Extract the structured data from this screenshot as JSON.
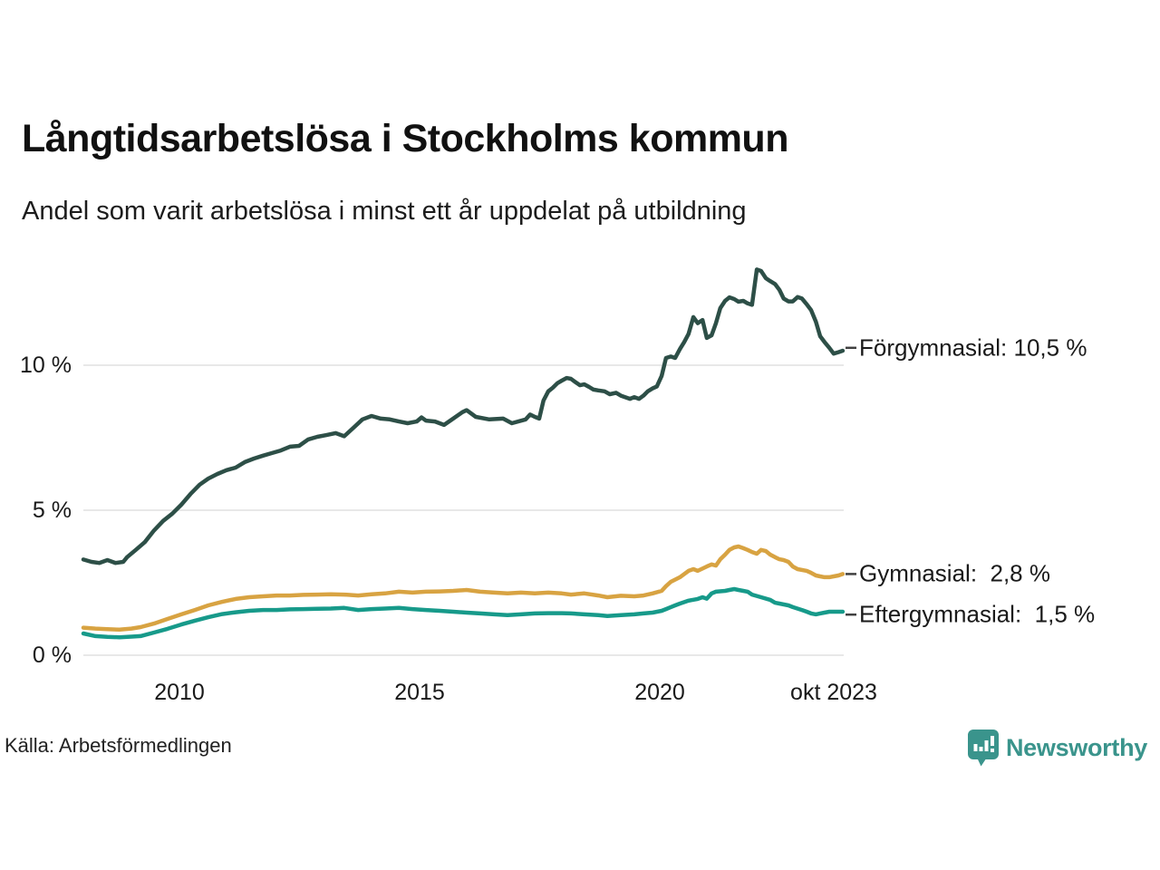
{
  "title": "Långtidsarbetslösa i Stockholms kommun",
  "subtitle": "Andel som varit arbetslösa i minst ett år uppdelat på utbildning",
  "source": "Källa: Arbetsförmedlingen",
  "branding": {
    "name": "Newsworthy",
    "color": "#3a948c",
    "icon": "newsworthy-pin-barchart-icon"
  },
  "colors": {
    "forgymnasial": "#2d4f47",
    "gymnasial": "#d8a342",
    "eftergymnasial": "#179a8a",
    "grid": "#e8e8e8",
    "text": "#1a1a1a",
    "annotation_dash": "#404040"
  },
  "chart_data": {
    "type": "line",
    "title": "Långtidsarbetslösa i Stockholms kommun",
    "subtitle": "Andel som varit arbetslösa i minst ett år uppdelat på utbildning",
    "xlabel": "",
    "ylabel": "",
    "unit": "%",
    "x_unit": "decimal year (monthly data)",
    "x_range": [
      2008.0,
      2023.83
    ],
    "ylim": [
      0,
      13.9
    ],
    "grid": "horizontal",
    "legend_position": "right-edge-annotations",
    "y_ticks": [
      {
        "label": "10 %",
        "value": 10
      },
      {
        "label": "5 %",
        "value": 5
      },
      {
        "label": "0 %",
        "value": 0
      }
    ],
    "x_ticks": [
      {
        "label": "2010",
        "value": 2010
      },
      {
        "label": "2015",
        "value": 2015
      },
      {
        "label": "2020",
        "value": 2020
      },
      {
        "label": "okt 2023",
        "value": 2023.62
      }
    ],
    "series": [
      {
        "id": "forgymnasial",
        "name": "Förgymnasial",
        "annotation": "Förgymnasial: 10,5 %",
        "last_value_label": "10,5 %",
        "color": "#2d4f47",
        "label_v": 10.6,
        "points": [
          [
            2008.0,
            3.3
          ],
          [
            2008.17,
            3.22
          ],
          [
            2008.33,
            3.18
          ],
          [
            2008.5,
            3.28
          ],
          [
            2008.67,
            3.18
          ],
          [
            2008.83,
            3.22
          ],
          [
            2008.91,
            3.38
          ],
          [
            2009.09,
            3.63
          ],
          [
            2009.28,
            3.9
          ],
          [
            2009.47,
            4.3
          ],
          [
            2009.66,
            4.63
          ],
          [
            2009.85,
            4.88
          ],
          [
            2010.04,
            5.19
          ],
          [
            2010.23,
            5.56
          ],
          [
            2010.42,
            5.88
          ],
          [
            2010.6,
            6.09
          ],
          [
            2010.79,
            6.25
          ],
          [
            2010.98,
            6.38
          ],
          [
            2011.17,
            6.47
          ],
          [
            2011.36,
            6.66
          ],
          [
            2011.55,
            6.78
          ],
          [
            2011.74,
            6.88
          ],
          [
            2011.92,
            6.97
          ],
          [
            2012.11,
            7.06
          ],
          [
            2012.3,
            7.19
          ],
          [
            2012.49,
            7.22
          ],
          [
            2012.68,
            7.44
          ],
          [
            2012.87,
            7.53
          ],
          [
            2013.06,
            7.59
          ],
          [
            2013.25,
            7.66
          ],
          [
            2013.43,
            7.55
          ],
          [
            2013.62,
            7.84
          ],
          [
            2013.81,
            8.13
          ],
          [
            2014.0,
            8.25
          ],
          [
            2014.19,
            8.16
          ],
          [
            2014.38,
            8.13
          ],
          [
            2014.57,
            8.06
          ],
          [
            2014.75,
            8.0
          ],
          [
            2014.94,
            8.06
          ],
          [
            2015.04,
            8.2
          ],
          [
            2015.13,
            8.09
          ],
          [
            2015.32,
            8.06
          ],
          [
            2015.51,
            7.94
          ],
          [
            2015.7,
            8.16
          ],
          [
            2015.89,
            8.38
          ],
          [
            2015.98,
            8.45
          ],
          [
            2016.17,
            8.22
          ],
          [
            2016.45,
            8.13
          ],
          [
            2016.74,
            8.16
          ],
          [
            2016.92,
            8.0
          ],
          [
            2017.21,
            8.13
          ],
          [
            2017.3,
            8.3
          ],
          [
            2017.4,
            8.22
          ],
          [
            2017.49,
            8.16
          ],
          [
            2017.58,
            8.78
          ],
          [
            2017.68,
            9.1
          ],
          [
            2017.77,
            9.22
          ],
          [
            2017.87,
            9.38
          ],
          [
            2017.96,
            9.47
          ],
          [
            2018.06,
            9.56
          ],
          [
            2018.15,
            9.53
          ],
          [
            2018.25,
            9.41
          ],
          [
            2018.34,
            9.31
          ],
          [
            2018.43,
            9.34
          ],
          [
            2018.53,
            9.25
          ],
          [
            2018.62,
            9.16
          ],
          [
            2018.72,
            9.13
          ],
          [
            2018.85,
            9.1
          ],
          [
            2018.96,
            9.0
          ],
          [
            2019.09,
            9.05
          ],
          [
            2019.19,
            8.95
          ],
          [
            2019.38,
            8.84
          ],
          [
            2019.47,
            8.9
          ],
          [
            2019.57,
            8.84
          ],
          [
            2019.66,
            8.95
          ],
          [
            2019.75,
            9.1
          ],
          [
            2019.85,
            9.2
          ],
          [
            2019.94,
            9.27
          ],
          [
            2020.04,
            9.63
          ],
          [
            2020.13,
            10.25
          ],
          [
            2020.23,
            10.3
          ],
          [
            2020.32,
            10.25
          ],
          [
            2020.42,
            10.56
          ],
          [
            2020.51,
            10.8
          ],
          [
            2020.6,
            11.08
          ],
          [
            2020.7,
            11.66
          ],
          [
            2020.79,
            11.45
          ],
          [
            2020.89,
            11.56
          ],
          [
            2020.98,
            10.94
          ],
          [
            2021.08,
            11.03
          ],
          [
            2021.17,
            11.45
          ],
          [
            2021.26,
            11.97
          ],
          [
            2021.36,
            12.22
          ],
          [
            2021.45,
            12.34
          ],
          [
            2021.55,
            12.28
          ],
          [
            2021.64,
            12.19
          ],
          [
            2021.74,
            12.22
          ],
          [
            2021.83,
            12.13
          ],
          [
            2021.92,
            12.08
          ],
          [
            2022.02,
            13.3
          ],
          [
            2022.11,
            13.25
          ],
          [
            2022.21,
            13.0
          ],
          [
            2022.3,
            12.9
          ],
          [
            2022.4,
            12.8
          ],
          [
            2022.49,
            12.6
          ],
          [
            2022.58,
            12.3
          ],
          [
            2022.68,
            12.2
          ],
          [
            2022.77,
            12.2
          ],
          [
            2022.87,
            12.35
          ],
          [
            2022.96,
            12.3
          ],
          [
            2023.06,
            12.1
          ],
          [
            2023.15,
            11.9
          ],
          [
            2023.25,
            11.5
          ],
          [
            2023.34,
            11.0
          ],
          [
            2023.43,
            10.8
          ],
          [
            2023.53,
            10.6
          ],
          [
            2023.62,
            10.4
          ],
          [
            2023.72,
            10.45
          ],
          [
            2023.81,
            10.5
          ]
        ]
      },
      {
        "id": "gymnasial",
        "name": "Gymnasial",
        "annotation": "Gymnasial:  2,8 %",
        "last_value_label": "2,8 %",
        "color": "#d8a342",
        "label_v": 2.8,
        "points": [
          [
            2008.0,
            0.95
          ],
          [
            2008.25,
            0.92
          ],
          [
            2008.5,
            0.9
          ],
          [
            2008.75,
            0.88
          ],
          [
            2009.0,
            0.92
          ],
          [
            2009.19,
            0.97
          ],
          [
            2009.47,
            1.09
          ],
          [
            2009.75,
            1.25
          ],
          [
            2010.04,
            1.41
          ],
          [
            2010.32,
            1.56
          ],
          [
            2010.6,
            1.72
          ],
          [
            2010.89,
            1.84
          ],
          [
            2011.17,
            1.94
          ],
          [
            2011.45,
            2.0
          ],
          [
            2011.74,
            2.03
          ],
          [
            2012.02,
            2.06
          ],
          [
            2012.3,
            2.06
          ],
          [
            2012.58,
            2.08
          ],
          [
            2012.87,
            2.09
          ],
          [
            2013.15,
            2.1
          ],
          [
            2013.43,
            2.09
          ],
          [
            2013.72,
            2.06
          ],
          [
            2014.0,
            2.1
          ],
          [
            2014.28,
            2.13
          ],
          [
            2014.57,
            2.19
          ],
          [
            2014.85,
            2.16
          ],
          [
            2015.13,
            2.19
          ],
          [
            2015.42,
            2.2
          ],
          [
            2015.7,
            2.22
          ],
          [
            2015.98,
            2.25
          ],
          [
            2016.26,
            2.19
          ],
          [
            2016.55,
            2.16
          ],
          [
            2016.83,
            2.13
          ],
          [
            2017.11,
            2.16
          ],
          [
            2017.4,
            2.13
          ],
          [
            2017.68,
            2.16
          ],
          [
            2017.96,
            2.13
          ],
          [
            2018.15,
            2.09
          ],
          [
            2018.43,
            2.13
          ],
          [
            2018.72,
            2.06
          ],
          [
            2018.91,
            2.0
          ],
          [
            2019.19,
            2.05
          ],
          [
            2019.47,
            2.03
          ],
          [
            2019.66,
            2.06
          ],
          [
            2019.85,
            2.13
          ],
          [
            2020.04,
            2.22
          ],
          [
            2020.13,
            2.38
          ],
          [
            2020.23,
            2.53
          ],
          [
            2020.42,
            2.69
          ],
          [
            2020.6,
            2.91
          ],
          [
            2020.7,
            2.97
          ],
          [
            2020.79,
            2.91
          ],
          [
            2020.98,
            3.06
          ],
          [
            2021.08,
            3.13
          ],
          [
            2021.17,
            3.09
          ],
          [
            2021.26,
            3.31
          ],
          [
            2021.36,
            3.47
          ],
          [
            2021.45,
            3.63
          ],
          [
            2021.55,
            3.72
          ],
          [
            2021.64,
            3.75
          ],
          [
            2021.74,
            3.69
          ],
          [
            2021.83,
            3.63
          ],
          [
            2021.92,
            3.56
          ],
          [
            2022.02,
            3.5
          ],
          [
            2022.11,
            3.63
          ],
          [
            2022.21,
            3.59
          ],
          [
            2022.3,
            3.47
          ],
          [
            2022.4,
            3.38
          ],
          [
            2022.49,
            3.31
          ],
          [
            2022.58,
            3.28
          ],
          [
            2022.68,
            3.22
          ],
          [
            2022.77,
            3.06
          ],
          [
            2022.87,
            2.97
          ],
          [
            2023.06,
            2.91
          ],
          [
            2023.15,
            2.84
          ],
          [
            2023.25,
            2.75
          ],
          [
            2023.34,
            2.72
          ],
          [
            2023.43,
            2.69
          ],
          [
            2023.53,
            2.69
          ],
          [
            2023.62,
            2.72
          ],
          [
            2023.72,
            2.75
          ],
          [
            2023.81,
            2.8
          ]
        ]
      },
      {
        "id": "eftergymnasial",
        "name": "Eftergymnasial",
        "annotation": "Eftergymnasial:  1,5 %",
        "last_value_label": "1,5 %",
        "color": "#179a8a",
        "label_v": 1.4,
        "points": [
          [
            2008.0,
            0.75
          ],
          [
            2008.25,
            0.66
          ],
          [
            2008.5,
            0.63
          ],
          [
            2008.75,
            0.62
          ],
          [
            2009.0,
            0.64
          ],
          [
            2009.19,
            0.66
          ],
          [
            2009.47,
            0.78
          ],
          [
            2009.75,
            0.91
          ],
          [
            2010.04,
            1.06
          ],
          [
            2010.32,
            1.19
          ],
          [
            2010.6,
            1.31
          ],
          [
            2010.89,
            1.42
          ],
          [
            2011.17,
            1.48
          ],
          [
            2011.45,
            1.53
          ],
          [
            2011.74,
            1.56
          ],
          [
            2012.02,
            1.56
          ],
          [
            2012.3,
            1.58
          ],
          [
            2012.58,
            1.59
          ],
          [
            2012.87,
            1.6
          ],
          [
            2013.15,
            1.61
          ],
          [
            2013.43,
            1.63
          ],
          [
            2013.72,
            1.56
          ],
          [
            2014.0,
            1.59
          ],
          [
            2014.28,
            1.61
          ],
          [
            2014.57,
            1.63
          ],
          [
            2014.85,
            1.59
          ],
          [
            2015.13,
            1.56
          ],
          [
            2015.42,
            1.53
          ],
          [
            2015.7,
            1.5
          ],
          [
            2015.98,
            1.47
          ],
          [
            2016.26,
            1.44
          ],
          [
            2016.55,
            1.41
          ],
          [
            2016.83,
            1.38
          ],
          [
            2017.11,
            1.41
          ],
          [
            2017.4,
            1.44
          ],
          [
            2017.68,
            1.45
          ],
          [
            2017.96,
            1.45
          ],
          [
            2018.15,
            1.44
          ],
          [
            2018.43,
            1.41
          ],
          [
            2018.72,
            1.38
          ],
          [
            2018.91,
            1.35
          ],
          [
            2019.19,
            1.38
          ],
          [
            2019.47,
            1.41
          ],
          [
            2019.66,
            1.44
          ],
          [
            2019.85,
            1.47
          ],
          [
            2020.04,
            1.53
          ],
          [
            2020.13,
            1.59
          ],
          [
            2020.23,
            1.66
          ],
          [
            2020.32,
            1.72
          ],
          [
            2020.42,
            1.78
          ],
          [
            2020.6,
            1.88
          ],
          [
            2020.79,
            1.94
          ],
          [
            2020.89,
            2.0
          ],
          [
            2020.98,
            1.95
          ],
          [
            2021.08,
            2.13
          ],
          [
            2021.17,
            2.19
          ],
          [
            2021.36,
            2.22
          ],
          [
            2021.45,
            2.25
          ],
          [
            2021.55,
            2.28
          ],
          [
            2021.64,
            2.25
          ],
          [
            2021.74,
            2.22
          ],
          [
            2021.83,
            2.19
          ],
          [
            2021.92,
            2.09
          ],
          [
            2022.11,
            2.0
          ],
          [
            2022.3,
            1.91
          ],
          [
            2022.4,
            1.81
          ],
          [
            2022.49,
            1.78
          ],
          [
            2022.68,
            1.72
          ],
          [
            2022.77,
            1.66
          ],
          [
            2022.96,
            1.56
          ],
          [
            2023.06,
            1.5
          ],
          [
            2023.15,
            1.44
          ],
          [
            2023.25,
            1.41
          ],
          [
            2023.34,
            1.44
          ],
          [
            2023.43,
            1.47
          ],
          [
            2023.53,
            1.5
          ],
          [
            2023.62,
            1.5
          ],
          [
            2023.72,
            1.5
          ],
          [
            2023.81,
            1.5
          ]
        ]
      }
    ]
  }
}
